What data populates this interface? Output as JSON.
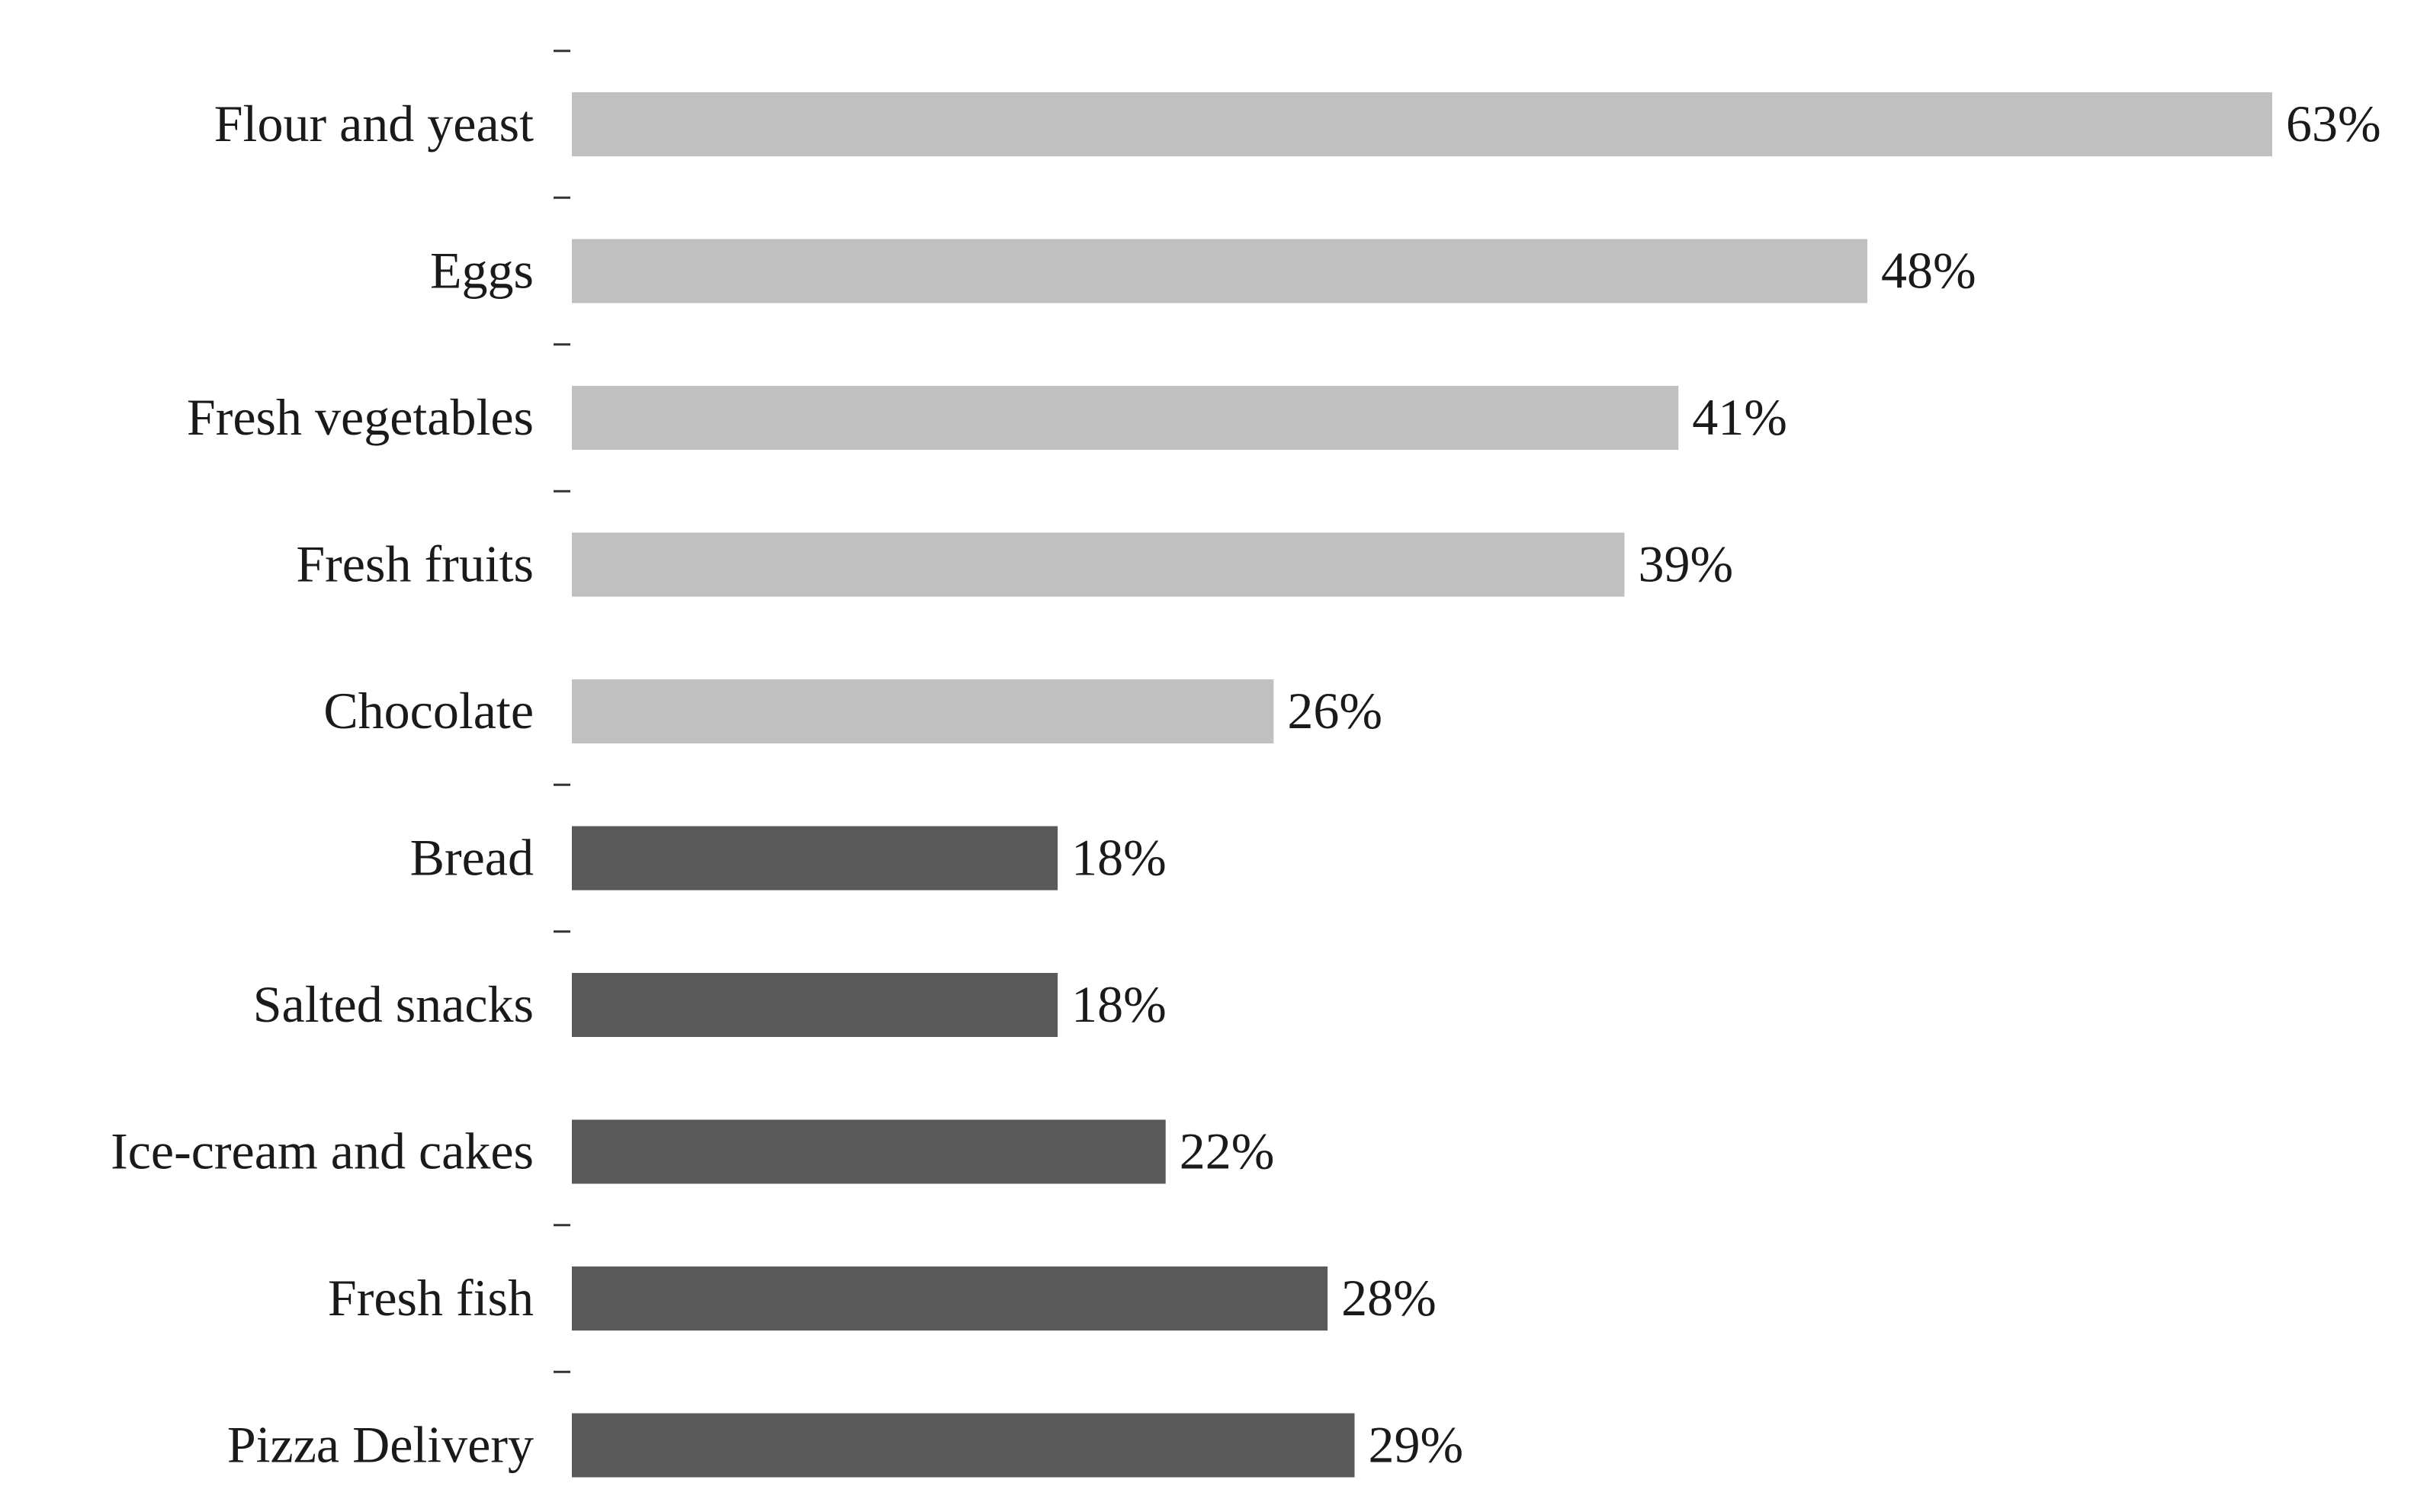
{
  "chart_data": {
    "type": "bar",
    "orientation": "horizontal",
    "title": "",
    "xlabel": "",
    "ylabel": "",
    "categories": [
      "Flour and yeast",
      "Eggs",
      "Fresh vegetables",
      "Fresh fruits",
      "Chocolate",
      "Bread",
      "Salted snacks",
      "Ice-cream and cakes",
      "Fresh fish",
      "Pizza Delivery"
    ],
    "values": [
      63,
      48,
      41,
      39,
      26,
      18,
      18,
      22,
      28,
      29
    ],
    "value_labels": [
      "63%",
      "48%",
      "41%",
      "39%",
      "26%",
      "18%",
      "18%",
      "22%",
      "28%",
      "29%"
    ],
    "value_unit": "%",
    "xlim": [
      0,
      63
    ],
    "grid": false,
    "legend": "none",
    "colors": {
      "first_group": "#c0c0c0",
      "second_group": "#595959"
    },
    "bar_color_group": [
      "first_group",
      "first_group",
      "first_group",
      "first_group",
      "first_group",
      "second_group",
      "second_group",
      "second_group",
      "second_group",
      "second_group"
    ]
  }
}
